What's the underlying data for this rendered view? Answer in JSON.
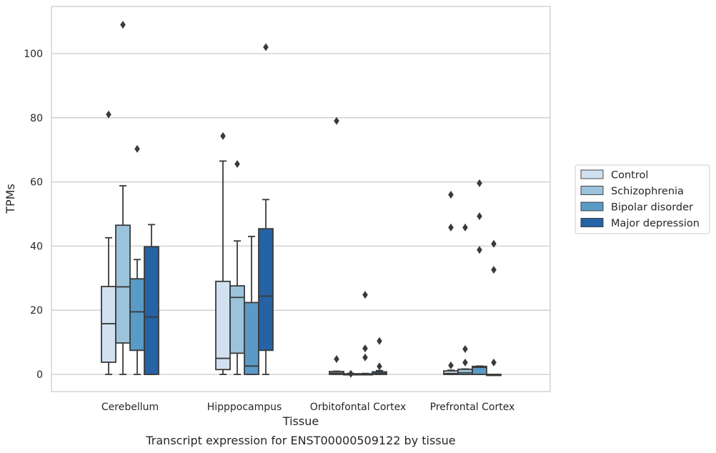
{
  "chart_data": {
    "type": "box",
    "title": "Transcript expression for ENST00000509122 by tissue",
    "xlabel": "Tissue",
    "ylabel": "TPMs",
    "ylim": [
      -5,
      115
    ],
    "yticks": [
      0,
      20,
      40,
      60,
      80,
      100
    ],
    "grid": "horizontal",
    "legend_position": "right",
    "categories": [
      "Cerebellum",
      "Hipppocampus",
      "Orbitofontal Cortex",
      "Prefrontal Cortex"
    ],
    "series": [
      {
        "name": "Control",
        "color": "#d1e1f0",
        "boxes": [
          {
            "whisker_low": 0,
            "q1": 3.8,
            "median": 15.8,
            "q3": 27.4,
            "whisker_high": 42.6,
            "outliers": [
              81
            ]
          },
          {
            "whisker_low": 0,
            "q1": 1.5,
            "median": 5.0,
            "q3": 29.0,
            "whisker_high": 66.5,
            "outliers": [
              74.3
            ]
          },
          {
            "whisker_low": 0,
            "q1": 0,
            "median": 0.4,
            "q3": 0.9,
            "whisker_high": 1.0,
            "outliers": [
              79,
              4.8
            ]
          },
          {
            "whisker_low": 0,
            "q1": 0,
            "median": 0.3,
            "q3": 1.1,
            "whisker_high": 1.3,
            "outliers": [
              56,
              45.8,
              2.8
            ]
          }
        ]
      },
      {
        "name": "Schizophrenia",
        "color": "#9cc3dc",
        "boxes": [
          {
            "whisker_low": 0,
            "q1": 9.8,
            "median": 27.3,
            "q3": 46.5,
            "whisker_high": 58.8,
            "outliers": [
              109
            ]
          },
          {
            "whisker_low": 0,
            "q1": 6.6,
            "median": 24.0,
            "q3": 27.6,
            "whisker_high": 41.6,
            "outliers": [
              65.6
            ]
          },
          {
            "whisker_low": 0,
            "q1": 0,
            "median": 0.1,
            "q3": 0.2,
            "whisker_high": 0.3,
            "outliers": [
              0.2
            ]
          },
          {
            "whisker_low": 0,
            "q1": 0,
            "median": 0.5,
            "q3": 1.6,
            "whisker_high": 1.7,
            "outliers": [
              45.8,
              7.9,
              3.7
            ]
          }
        ]
      },
      {
        "name": "Bipolar disorder",
        "color": "#5a9ac6",
        "boxes": [
          {
            "whisker_low": 0,
            "q1": 7.5,
            "median": 19.5,
            "q3": 29.8,
            "whisker_high": 35.8,
            "outliers": [
              70.3
            ]
          },
          {
            "whisker_low": 0,
            "q1": 0,
            "median": 2.6,
            "q3": 22.4,
            "whisker_high": 43.0,
            "outliers": []
          },
          {
            "whisker_low": 0,
            "q1": 0,
            "median": 0.1,
            "q3": 0.2,
            "whisker_high": 0.3,
            "outliers": [
              24.8,
              8.1,
              5.3
            ]
          },
          {
            "whisker_low": 0,
            "q1": 0,
            "median": 2.2,
            "q3": 2.5,
            "whisker_high": 2.6,
            "outliers": [
              59.6,
              49.3,
              38.8
            ]
          }
        ]
      },
      {
        "name": "Major depression",
        "color": "#2563a5",
        "boxes": [
          {
            "whisker_low": 0,
            "q1": 0,
            "median": 17.9,
            "q3": 39.8,
            "whisker_high": 46.7,
            "outliers": []
          },
          {
            "whisker_low": 0,
            "q1": 7.5,
            "median": 24.4,
            "q3": 45.4,
            "whisker_high": 54.5,
            "outliers": [
              102
            ]
          },
          {
            "whisker_low": 0,
            "q1": 0,
            "median": 0.3,
            "q3": 0.8,
            "whisker_high": 1.2,
            "outliers": [
              10.4,
              2.5
            ]
          },
          {
            "whisker_low": 0,
            "q1": 0,
            "median": 0,
            "q3": 0,
            "whisker_high": 0,
            "outliers": [
              40.7,
              32.6,
              3.7
            ]
          }
        ]
      }
    ]
  }
}
